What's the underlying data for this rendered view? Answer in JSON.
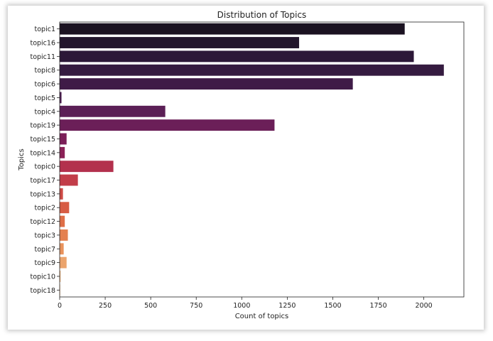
{
  "chart_data": {
    "type": "bar",
    "orientation": "horizontal",
    "title": "Distribution of Topics",
    "xlabel": "Count of topics",
    "ylabel": "Topics",
    "xlim": [
      0,
      2220
    ],
    "xticks": [
      0,
      250,
      500,
      750,
      1000,
      1250,
      1500,
      1750,
      2000
    ],
    "grid": false,
    "categories": [
      "topic1",
      "topic16",
      "topic11",
      "topic8",
      "topic6",
      "topic5",
      "topic4",
      "topic19",
      "topic15",
      "topic14",
      "topic0",
      "topic17",
      "topic13",
      "topic2",
      "topic12",
      "topic3",
      "topic7",
      "topic9",
      "topic10",
      "topic18"
    ],
    "values": [
      1895,
      1315,
      1945,
      2110,
      1610,
      10,
      580,
      1180,
      38,
      28,
      295,
      100,
      18,
      52,
      28,
      45,
      22,
      38,
      5,
      3
    ],
    "colors": [
      "#1b1221",
      "#22152c",
      "#2c1838",
      "#351b40",
      "#3f1b47",
      "#4b1d4f",
      "#5b1f56",
      "#6b1f58",
      "#7b1f58",
      "#8b2157",
      "#b3314d",
      "#c23d49",
      "#ce4a45",
      "#d75c44",
      "#de6e47",
      "#e4804f",
      "#e8925c",
      "#eba46d",
      "#eeb47f",
      "#f0c495"
    ]
  }
}
